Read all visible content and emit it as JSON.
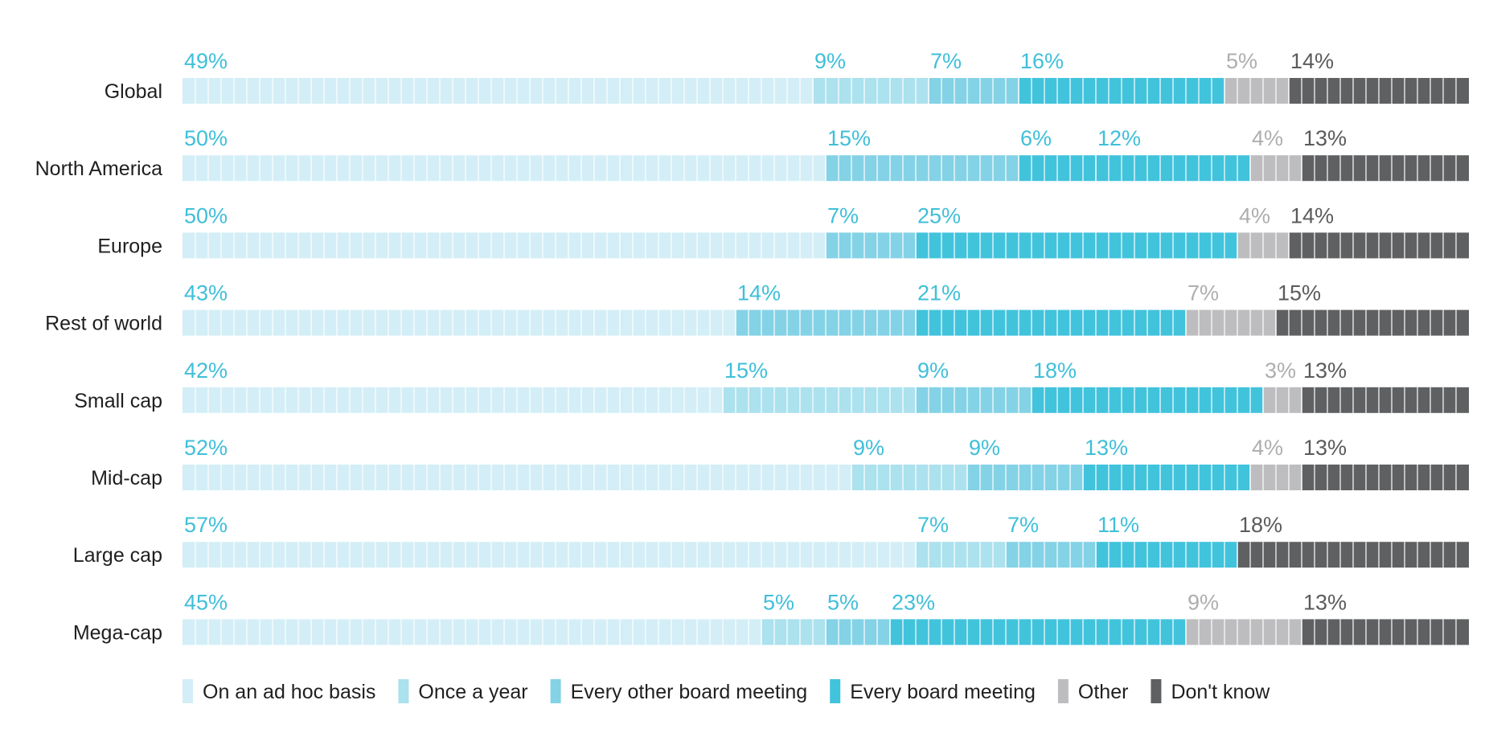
{
  "chart_data": {
    "type": "bar",
    "orientation": "horizontal",
    "stacked": true,
    "title": "",
    "xlabel": "",
    "ylabel": "",
    "xlim": [
      0,
      100
    ],
    "grid": false,
    "legend_position": "bottom",
    "categories": [
      "Global",
      "North America",
      "Europe",
      "Rest of world",
      "Small cap",
      "Mid-cap",
      "Large cap",
      "Mega-cap"
    ],
    "series": [
      {
        "name": "On an ad hoc basis",
        "color": "#d3eef6",
        "values": [
          49,
          50,
          50,
          43,
          42,
          52,
          57,
          45
        ],
        "labels": [
          "49%",
          "50%",
          "50%",
          "43%",
          "42%",
          "52%",
          "57%",
          "45%"
        ]
      },
      {
        "name": "Once a year",
        "color": "#ace1ee",
        "values": [
          9,
          0,
          0,
          0,
          15,
          9,
          7,
          5
        ],
        "labels": [
          "9%",
          "",
          "",
          "",
          "15%",
          "9%",
          "7%",
          "5%"
        ]
      },
      {
        "name": "Every other board meeting",
        "color": "#84d2e6",
        "values": [
          7,
          15,
          7,
          14,
          9,
          9,
          7,
          5
        ],
        "labels": [
          "7%",
          "15%",
          "7%",
          "14%",
          "9%",
          "9%",
          "7%",
          "5%"
        ]
      },
      {
        "name": "Every board meeting",
        "color": "#41c3dc",
        "values": [
          16,
          6,
          25,
          21,
          18,
          13,
          11,
          23
        ],
        "labels": [
          "16%",
          "6%",
          "25%",
          "21%",
          "18%",
          "13%",
          "11%",
          "23%"
        ]
      },
      {
        "name": "Every board meeting",
        "color": "#41c3dc",
        "values": [
          0,
          12,
          0,
          0,
          0,
          0,
          0,
          0
        ],
        "labels": [
          "",
          "12%",
          "",
          "",
          "",
          "",
          "",
          ""
        ]
      },
      {
        "name": "Other",
        "color": "#bdbdbf",
        "values": [
          5,
          4,
          4,
          7,
          3,
          4,
          0,
          9
        ],
        "labels": [
          "5%",
          "4%",
          "4%",
          "7%",
          "3%",
          "4%",
          "",
          "9%"
        ]
      },
      {
        "name": "Don't know",
        "color": "#5f6061",
        "values": [
          14,
          13,
          14,
          15,
          13,
          13,
          18,
          13
        ],
        "labels": [
          "14%",
          "13%",
          "14%",
          "15%",
          "13%",
          "13%",
          "18%",
          "13%"
        ]
      }
    ],
    "legend": [
      {
        "name": "On an ad hoc basis",
        "color": "#d3eef6"
      },
      {
        "name": "Once a year",
        "color": "#ace1ee"
      },
      {
        "name": "Every other board meeting",
        "color": "#84d2e6"
      },
      {
        "name": "Every board meeting",
        "color": "#41c3dc"
      },
      {
        "name": "Other",
        "color": "#bdbdbf"
      },
      {
        "name": "Don't know",
        "color": "#5f6061"
      }
    ],
    "label_colors": {
      "cyan": "#3fbfd9",
      "other": "#aeaeb0",
      "dont_know": "#5a5b5c"
    }
  }
}
